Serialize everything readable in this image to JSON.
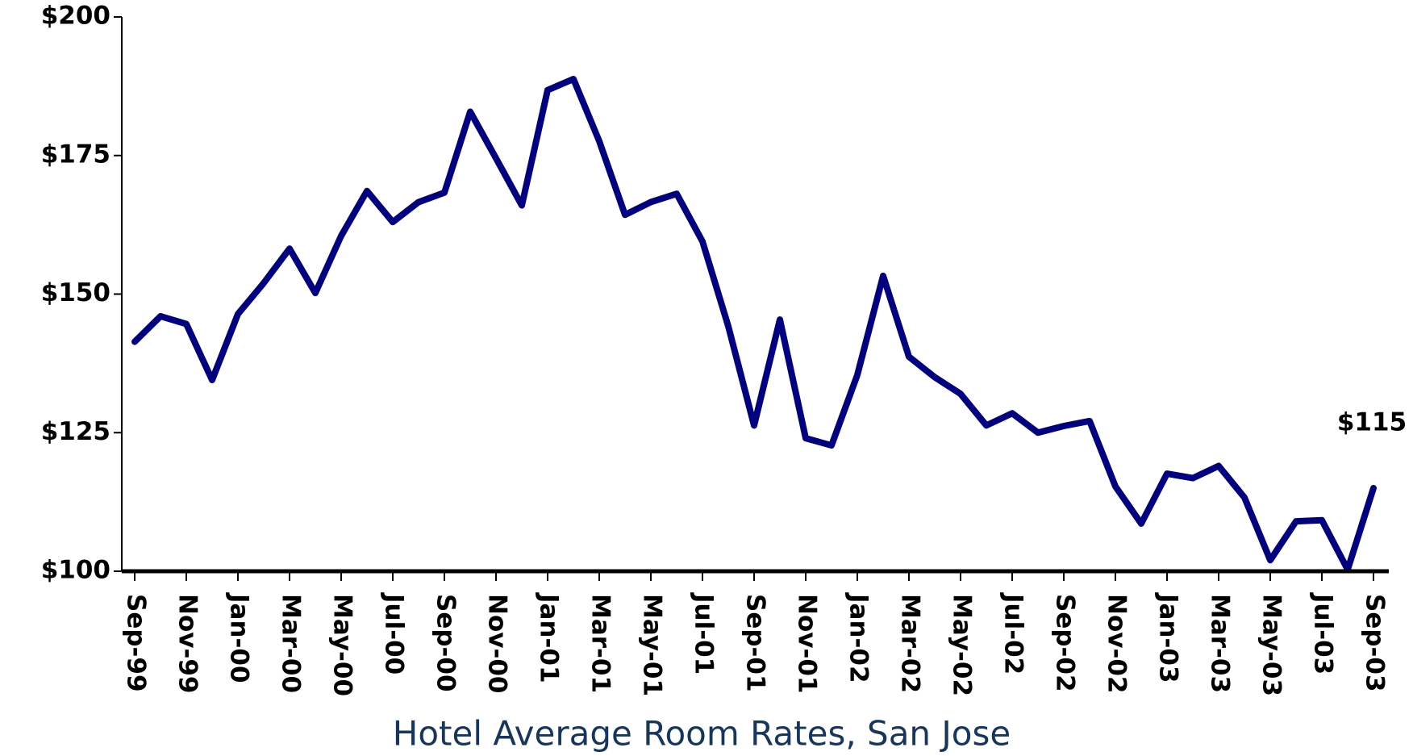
{
  "chart_data": {
    "type": "line",
    "caption": "Hotel Average Room Rates, San Jose",
    "categories": [
      "Sep-99",
      null,
      "Nov-99",
      null,
      "Jan-00",
      null,
      "Mar-00",
      null,
      "May-00",
      null,
      "Jul-00",
      null,
      "Sep-00",
      null,
      "Nov-00",
      null,
      "Jan-01",
      null,
      "Mar-01",
      null,
      "May-01",
      null,
      "Jul-01",
      null,
      "Sep-01",
      null,
      "Nov-01",
      null,
      "Jan-02",
      null,
      "Mar-02",
      null,
      "May-02",
      null,
      "Jul-02",
      null,
      "Sep-02",
      null,
      "Nov-02",
      null,
      "Jan-03",
      null,
      "Mar-03",
      null,
      "May-03",
      null,
      "Jul-03",
      null,
      "Sep-03"
    ],
    "series": [
      {
        "color": "#000080",
        "values": [
          141.4,
          146,
          144.6,
          134.5,
          146.4,
          152,
          158.2,
          150.2,
          160.5,
          168.6,
          163,
          166.6,
          168.3,
          182.9,
          174.5,
          166,
          186.8,
          188.8,
          177.6,
          164.3,
          166.6,
          168.1,
          159.5,
          144.2,
          126.3,
          145.4,
          124,
          122.7,
          135.4,
          153.3,
          138.7,
          135,
          132,
          126.3,
          128.5,
          125,
          126.2,
          127.1,
          115.3,
          108.6,
          117.6,
          116.8,
          119,
          113.3,
          102,
          109,
          109.2,
          100.3,
          115
        ],
        "value_labels": [
          null,
          null,
          null,
          null,
          null,
          null,
          null,
          null,
          null,
          null,
          null,
          null,
          null,
          null,
          null,
          null,
          null,
          null,
          null,
          null,
          null,
          null,
          null,
          null,
          null,
          null,
          null,
          null,
          null,
          null,
          null,
          null,
          null,
          null,
          null,
          null,
          null,
          null,
          null,
          null,
          null,
          null,
          null,
          null,
          null,
          null,
          null,
          null,
          "$115"
        ]
      }
    ],
    "ylim": [
      100,
      200
    ],
    "yticks": [
      {
        "value": 100,
        "label": "$100"
      },
      {
        "value": 125,
        "label": "$125"
      },
      {
        "value": 150,
        "label": "$150"
      },
      {
        "value": 175,
        "label": "$175"
      },
      {
        "value": 200,
        "label": "$200"
      }
    ],
    "grid": false
  }
}
